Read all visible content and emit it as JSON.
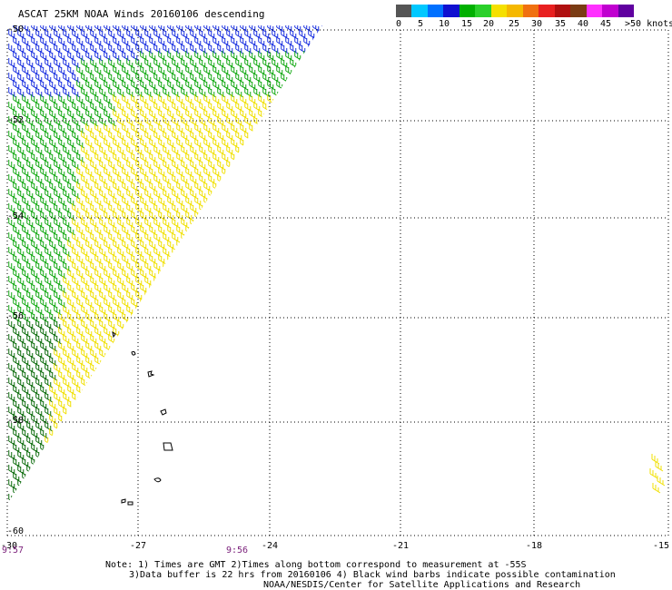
{
  "title": "ASCAT 25KM NOAA Winds 20160106 descending",
  "legend": {
    "colors": [
      "#555555",
      "#00c8ff",
      "#0070ff",
      "#1010d0",
      "#00b000",
      "#2ad02a",
      "#f5e000",
      "#f5b800",
      "#f07010",
      "#e82020",
      "#b01010",
      "#7a3c14",
      "#ff30ff",
      "#c000d0",
      "#6000a0"
    ],
    "labels": [
      "0",
      "5",
      "10",
      "15",
      "20",
      "25",
      "30",
      "35",
      "40",
      "45",
      ">50 knots"
    ]
  },
  "lat_labels": [
    "-50",
    "-52",
    "-54",
    "-56",
    "-58",
    "-60"
  ],
  "lon_labels": [
    "-30",
    "-27",
    "-24",
    "-21",
    "-18",
    "-15"
  ],
  "times": [
    "9:57",
    "9:56"
  ],
  "notes": [
    "Note: 1) Times are GMT 2)Times along bottom correspond to measurement at -55S",
    "3)Data buffer is 22 hrs from 20160106 4) Black wind barbs indicate possible contamination",
    "NOAA/NESDIS/Center for Satellite Applications and Research"
  ],
  "wind_colors": {
    "blue": "#1a30e0",
    "cyan": "#00b8ff",
    "green": "#12a812",
    "darkgreen": "#0a6a0a",
    "yellow": "#f0e000",
    "black": "#000000"
  }
}
